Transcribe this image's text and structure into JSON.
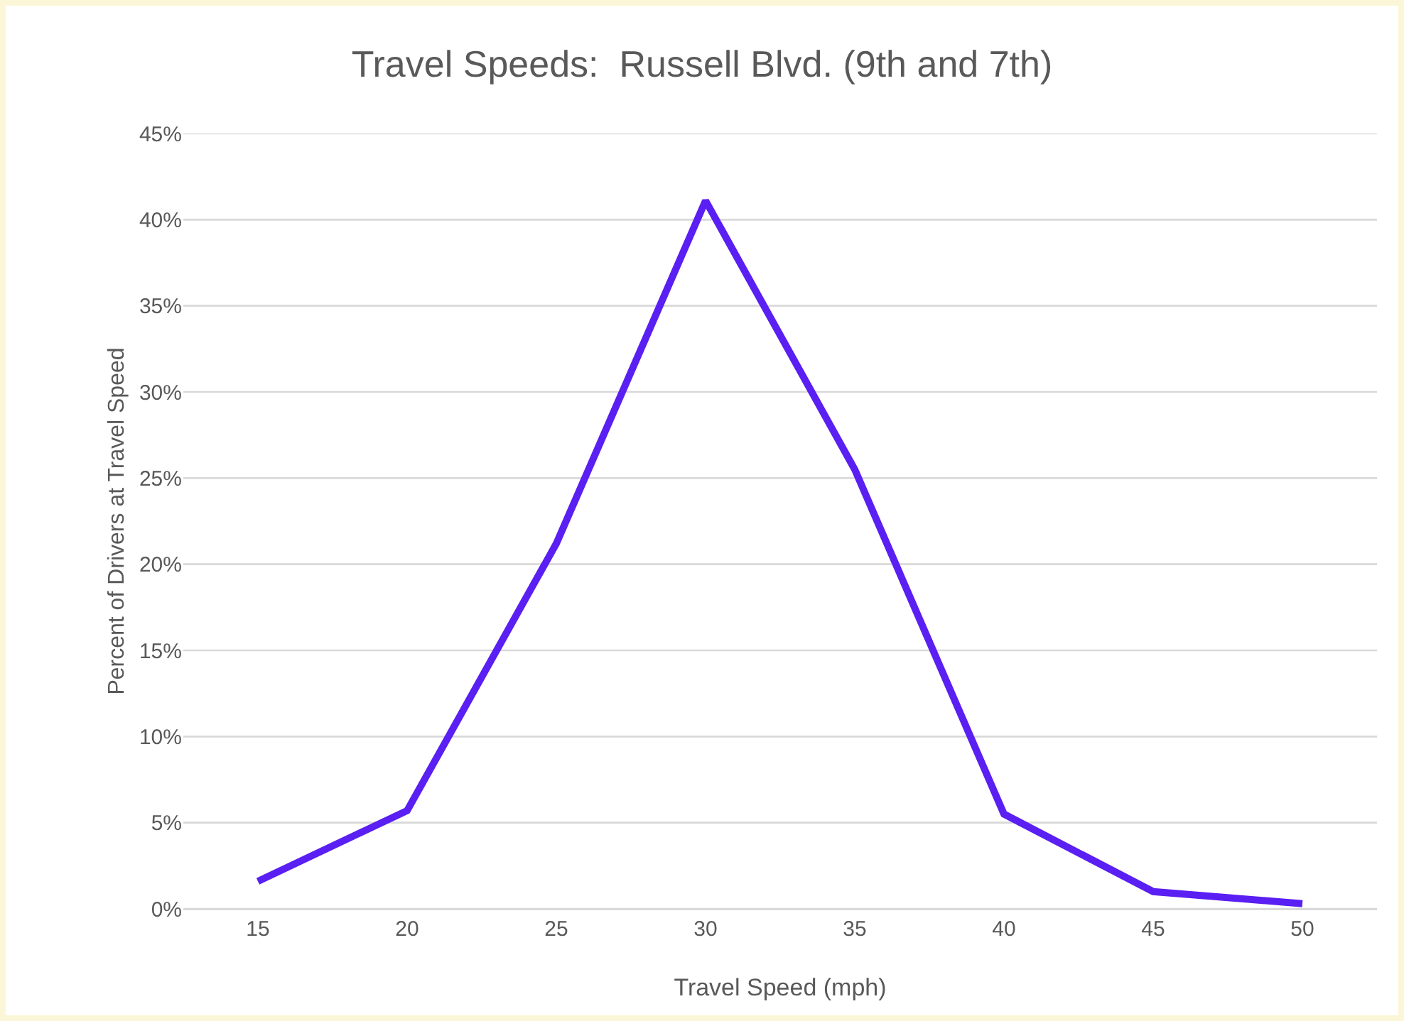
{
  "chart_data": {
    "type": "line",
    "title": "Travel Speeds:  Russell Blvd. (9th and 7th)",
    "xlabel": "Travel Speed (mph)",
    "ylabel": "Percent of Drivers at Travel Speed",
    "categories": [
      "15",
      "20",
      "25",
      "30",
      "35",
      "40",
      "45",
      "50"
    ],
    "series": [
      {
        "color": "#5a1ff2",
        "values": [
          1.6,
          5.7,
          21.2,
          41.1,
          25.5,
          5.5,
          1.0,
          0.3
        ]
      }
    ],
    "ylim": [
      0,
      45
    ],
    "yticks": [
      {
        "value": 0,
        "label": "0%"
      },
      {
        "value": 5,
        "label": "5%"
      },
      {
        "value": 10,
        "label": "10%"
      },
      {
        "value": 15,
        "label": "15%"
      },
      {
        "value": 20,
        "label": "20%"
      },
      {
        "value": 25,
        "label": "25%"
      },
      {
        "value": 30,
        "label": "30%"
      },
      {
        "value": 35,
        "label": "35%"
      },
      {
        "value": 40,
        "label": "40%"
      },
      {
        "value": 45,
        "label": "45%"
      }
    ],
    "grid": "y",
    "marker": "none",
    "line_style": "solid"
  }
}
